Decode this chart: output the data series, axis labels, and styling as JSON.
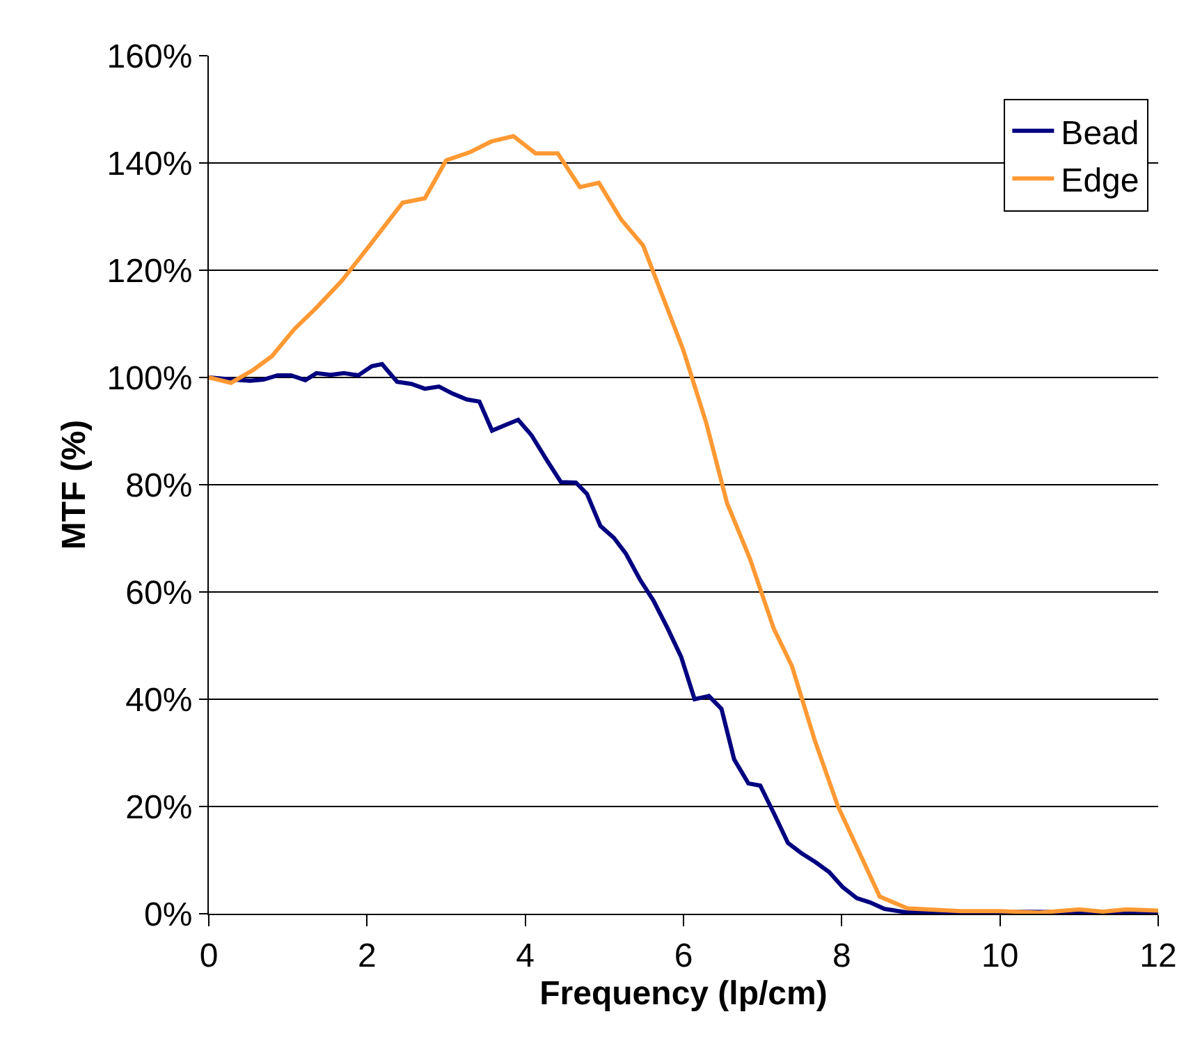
{
  "chart_data": {
    "type": "line",
    "xlabel": "Frequency (lp/cm)",
    "ylabel": "MTF (%)",
    "xlim": [
      0,
      12
    ],
    "xticks": [
      0,
      2,
      4,
      6,
      8,
      10,
      12
    ],
    "ylim": [
      0,
      160
    ],
    "yticks": [
      {
        "value": 0,
        "label": "0%"
      },
      {
        "value": 20,
        "label": "20%"
      },
      {
        "value": 40,
        "label": "40%"
      },
      {
        "value": 60,
        "label": "60%"
      },
      {
        "value": 80,
        "label": "80%"
      },
      {
        "value": 100,
        "label": "100%"
      },
      {
        "value": 120,
        "label": "120%"
      },
      {
        "value": 140,
        "label": "140%"
      },
      {
        "value": 160,
        "label": "160%"
      }
    ],
    "grid": "y",
    "legend": "top right",
    "marker": "none",
    "line_style": "solid",
    "series": [
      {
        "name": "Bead",
        "color": "#000080",
        "x": [
          0,
          0.31,
          0.52,
          0.69,
          0.87,
          1.04,
          1.22,
          1.36,
          1.54,
          1.71,
          1.89,
          2.06,
          2.19,
          2.38,
          2.56,
          2.73,
          2.91,
          3.08,
          3.26,
          3.42,
          3.58,
          3.76,
          3.91,
          4.08,
          4.28,
          4.45,
          4.64,
          4.78,
          4.95,
          5.12,
          5.27,
          5.45,
          5.62,
          5.8,
          5.97,
          6.14,
          6.32,
          6.48,
          6.64,
          6.82,
          6.97,
          7.14,
          7.32,
          7.49,
          7.66,
          7.84,
          8.01,
          8.19,
          8.36,
          8.54,
          8.8,
          9.5,
          11.5,
          12
        ],
        "values": [
          100,
          99.6,
          99.4,
          99.6,
          100.4,
          100.4,
          99.5,
          100.8,
          100.5,
          100.8,
          100.4,
          102.1,
          102.5,
          99.2,
          98.8,
          97.9,
          98.3,
          97,
          95.9,
          95.5,
          90.1,
          91.2,
          92.1,
          89.2,
          84.4,
          80.5,
          80.4,
          78.3,
          72.3,
          70.1,
          67.2,
          62.3,
          58.4,
          53.2,
          47.9,
          40,
          40.6,
          38.2,
          28.8,
          24.3,
          23.9,
          18.8,
          13.2,
          11.3,
          9.7,
          7.8,
          5,
          2.9,
          2.1,
          0.9,
          0.3,
          0.4,
          0.3,
          0.4
        ]
      },
      {
        "name": "Edge",
        "color": "#ff9933",
        "x": [
          0,
          0.28,
          0.56,
          0.8,
          1.08,
          1.36,
          1.68,
          2,
          2.45,
          2.73,
          3,
          3.3,
          3.57,
          3.85,
          4.13,
          4.41,
          4.69,
          4.93,
          5.21,
          5.49,
          5.74,
          6,
          6.29,
          6.55,
          6.84,
          7.14,
          7.37,
          7.66,
          7.95,
          8.48,
          8.83,
          9.5,
          10,
          10.5,
          11,
          11.3,
          11.6,
          12
        ],
        "values": [
          100,
          99,
          101.4,
          104,
          109,
          113,
          118,
          124,
          132.6,
          133.4,
          140.5,
          142,
          144,
          145,
          141.8,
          141.8,
          135.5,
          136.3,
          129.5,
          124.6,
          115,
          105,
          91.4,
          76.6,
          66.2,
          53.2,
          46.2,
          32.3,
          20.1,
          3.2,
          1,
          0.5,
          0.5,
          0.2,
          0.8,
          0.4,
          0.8,
          0.6
        ]
      }
    ]
  }
}
